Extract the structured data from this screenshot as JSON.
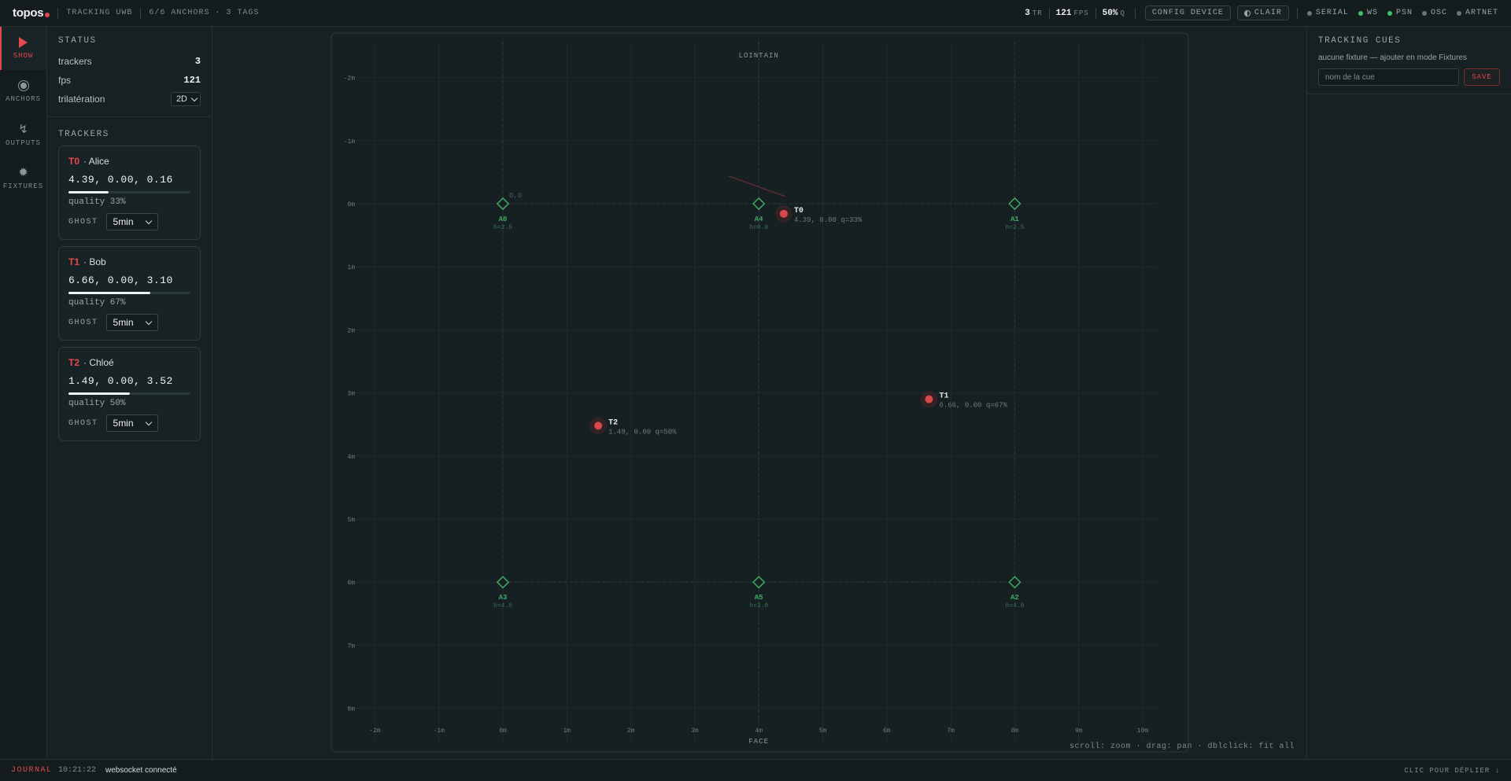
{
  "topbar": {
    "logo": "topos",
    "mode_label": "TRACKING UWB",
    "anchors_summary": "6/6 ANCHORS · 3 TAGS",
    "stats": [
      {
        "value": "3",
        "unit": "TR"
      },
      {
        "value": "121",
        "unit": "FPS"
      },
      {
        "value": "50%",
        "unit": "Q"
      }
    ],
    "config_button": "CONFIG DEVICE",
    "theme_button": "CLAIR",
    "status_items": [
      {
        "label": "SERIAL",
        "color": "#6b7678"
      },
      {
        "label": "WS",
        "color": "#3fbf6a"
      },
      {
        "label": "PSN",
        "color": "#3fbf6a"
      },
      {
        "label": "OSC",
        "color": "#6b7678"
      },
      {
        "label": "ARTNET",
        "color": "#6b7678"
      }
    ]
  },
  "rail": {
    "items": [
      {
        "label": "SHOW",
        "icon": "play-icon",
        "active": true
      },
      {
        "label": "ANCHORS",
        "icon": "radio-icon",
        "active": false
      },
      {
        "label": "OUTPUTS",
        "icon": "bolt-icon",
        "active": false
      },
      {
        "label": "FIXTURES",
        "icon": "sun-icon",
        "active": false
      }
    ]
  },
  "status": {
    "title": "STATUS",
    "rows": [
      {
        "label": "trackers",
        "value": "3"
      },
      {
        "label": "fps",
        "value": "121"
      }
    ],
    "trilateration_label": "trilatération",
    "trilateration_value": "2D"
  },
  "trackers": {
    "title": "TRACKERS",
    "items": [
      {
        "id": "T0",
        "name": "· Alice",
        "pos": "4.39, 0.00, 0.16",
        "quality": 0.33,
        "quality_text": "quality 33%",
        "ghost_label": "GHOST",
        "ghost_value": "5min"
      },
      {
        "id": "T1",
        "name": "· Bob",
        "pos": "6.66, 0.00, 3.10",
        "quality": 0.67,
        "quality_text": "quality 67%",
        "ghost_label": "GHOST",
        "ghost_value": "5min"
      },
      {
        "id": "T2",
        "name": "· Chloé",
        "pos": "1.49, 0.00, 3.52",
        "quality": 0.5,
        "quality_text": "quality 50%",
        "ghost_label": "GHOST",
        "ghost_value": "5min"
      }
    ]
  },
  "map": {
    "top_label": "LOINTAIN",
    "bottom_label": "FACE",
    "x_ticks": [
      "-2m",
      "-1m",
      "0m",
      "1m",
      "2m",
      "3m",
      "4m",
      "5m",
      "6m",
      "7m",
      "8m",
      "9m",
      "10m"
    ],
    "y_ticks": [
      "-2m",
      "-1m",
      "0m",
      "1m",
      "2m",
      "3m",
      "4m",
      "5m",
      "6m",
      "7m",
      "8m"
    ],
    "anchor_color": "#3fa864",
    "tag_color": "#d9494c",
    "anchors": [
      {
        "id": "A0",
        "h": "h=2.5",
        "x": 0,
        "z": 0
      },
      {
        "id": "A4",
        "h": "h=0.0",
        "x": 4,
        "z": 0
      },
      {
        "id": "A1",
        "h": "h=2.5",
        "x": 8,
        "z": 0
      },
      {
        "id": "A3",
        "h": "h=4.0",
        "x": 0,
        "z": 6
      },
      {
        "id": "A5",
        "h": "h=3.0",
        "x": 4,
        "z": 6
      },
      {
        "id": "A2",
        "h": "h=4.0",
        "x": 8,
        "z": 6
      }
    ],
    "origin_label": "0,0",
    "tags": [
      {
        "id": "T0",
        "info": "4.39, 0.00  q=33%",
        "x": 4.39,
        "z": 0.16
      },
      {
        "id": "T1",
        "info": "6.66, 0.00  q=67%",
        "x": 6.66,
        "z": 3.1
      },
      {
        "id": "T2",
        "info": "1.49, 0.00  q=50%",
        "x": 1.49,
        "z": 3.52
      }
    ],
    "hint": "scroll: zoom · drag: pan · dblclick: fit all"
  },
  "cues": {
    "title": "TRACKING CUES",
    "note": "aucune fixture — ajouter en mode Fixtures",
    "input_placeholder": "nom de la cue",
    "save_label": "SAVE"
  },
  "journal": {
    "label": "JOURNAL",
    "time": "10:21:22",
    "message": "websocket connecté",
    "expand_label": "CLIC POUR DÉPLIER ↓"
  }
}
